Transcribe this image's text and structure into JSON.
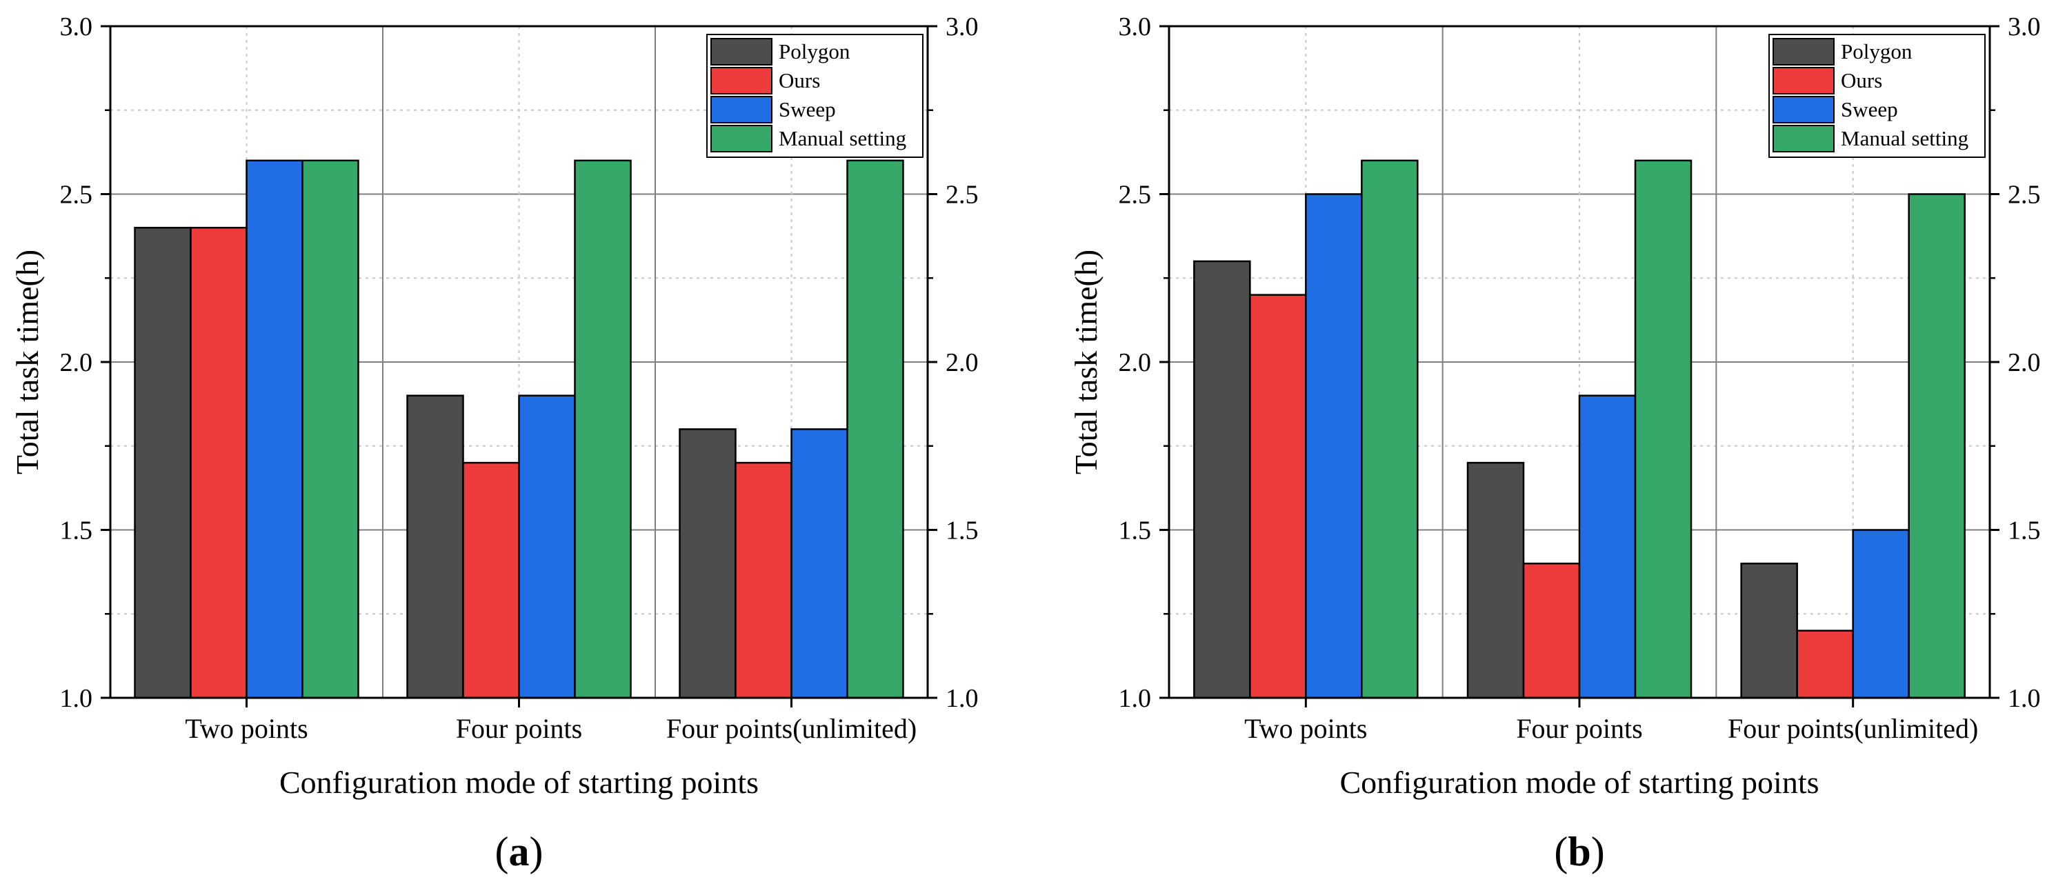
{
  "colors": {
    "polygon": "#4d4d4d",
    "ours": "#ee3b3b",
    "sweep": "#1f6ee6",
    "manual": "#35a86a",
    "frame": "#000000",
    "grid_major": "#7f7f7f",
    "grid_minor": "#c8c8c8"
  },
  "chart_data": [
    {
      "type": "bar",
      "panel_label": "(a)",
      "panel_letter": "a",
      "xlabel": "Configuration mode of starting points",
      "ylabel": "Total task time(h)",
      "ylim": [
        1.0,
        3.0
      ],
      "yticks": [
        "1.0",
        "1.5",
        "2.0",
        "2.5",
        "3.0"
      ],
      "right_axis_ticks": [
        "1.0",
        "1.5",
        "2.0",
        "2.5",
        "3.0"
      ],
      "categories": [
        "Two points",
        "Four points",
        "Four points(unlimited)"
      ],
      "legend": [
        "Polygon",
        "Ours",
        "Sweep",
        "Manual setting"
      ],
      "legend_position": "top-right",
      "grid": true,
      "series": [
        {
          "name": "Polygon",
          "values": [
            2.4,
            1.9,
            1.8
          ]
        },
        {
          "name": "Ours",
          "values": [
            2.4,
            1.7,
            1.7
          ]
        },
        {
          "name": "Sweep",
          "values": [
            2.6,
            1.9,
            1.8
          ]
        },
        {
          "name": "Manual setting",
          "values": [
            2.6,
            2.6,
            2.6
          ]
        }
      ]
    },
    {
      "type": "bar",
      "panel_label": "(b)",
      "panel_letter": "b",
      "xlabel": "Configuration mode of starting points",
      "ylabel": "Total task time(h)",
      "ylim": [
        1.0,
        3.0
      ],
      "yticks": [
        "1.0",
        "1.5",
        "2.0",
        "2.5",
        "3.0"
      ],
      "right_axis_ticks": [
        "1.0",
        "1.5",
        "2.0",
        "2.5",
        "3.0"
      ],
      "categories": [
        "Two points",
        "Four points",
        "Four points(unlimited)"
      ],
      "legend": [
        "Polygon",
        "Ours",
        "Sweep",
        "Manual setting"
      ],
      "legend_position": "top-right",
      "grid": true,
      "series": [
        {
          "name": "Polygon",
          "values": [
            2.3,
            1.7,
            1.4
          ]
        },
        {
          "name": "Ours",
          "values": [
            2.2,
            1.4,
            1.2
          ]
        },
        {
          "name": "Sweep",
          "values": [
            2.5,
            1.9,
            1.5
          ]
        },
        {
          "name": "Manual setting",
          "values": [
            2.6,
            2.6,
            2.5
          ]
        }
      ]
    }
  ]
}
